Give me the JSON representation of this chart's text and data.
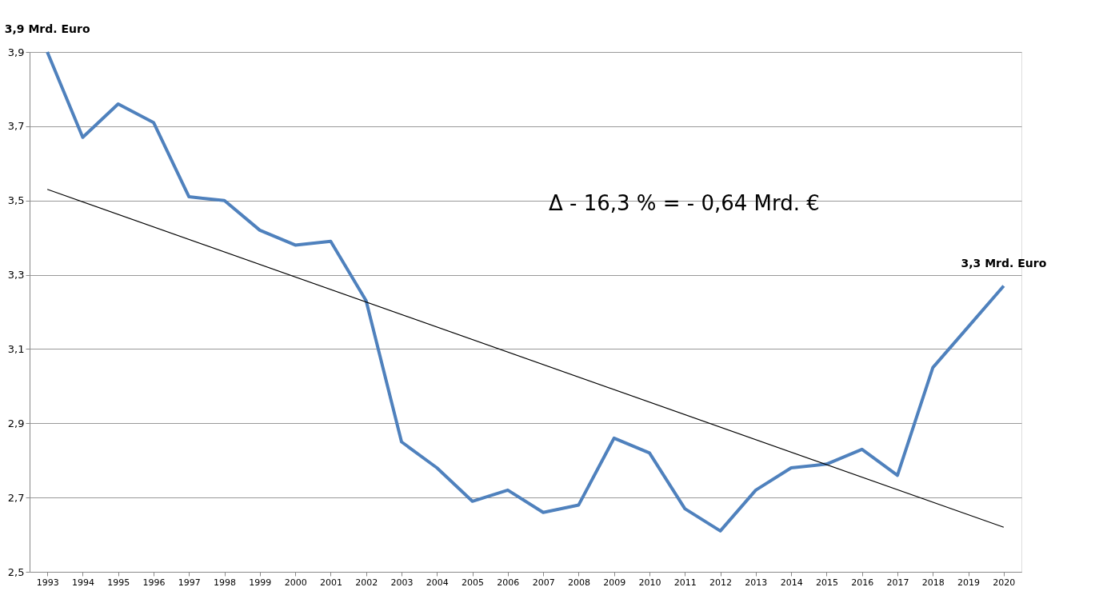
{
  "chart_data": {
    "type": "line",
    "categories": [
      "1993",
      "1994",
      "1995",
      "1996",
      "1997",
      "1998",
      "1999",
      "2000",
      "2001",
      "2002",
      "2003",
      "2004",
      "2005",
      "2006",
      "2007",
      "2008",
      "2009",
      "2010",
      "2011",
      "2012",
      "2013",
      "2014",
      "2015",
      "2016",
      "2017",
      "2018",
      "2019",
      "2020"
    ],
    "series": [
      {
        "color": "#4f81bd",
        "values": [
          3.9,
          3.67,
          3.76,
          3.71,
          3.51,
          3.5,
          3.42,
          3.38,
          3.39,
          3.23,
          2.85,
          2.78,
          2.69,
          2.72,
          2.66,
          2.68,
          2.86,
          2.82,
          2.67,
          2.61,
          2.72,
          2.78,
          2.79,
          2.83,
          2.76,
          3.05,
          3.16,
          3.27
        ]
      },
      {
        "type": "line",
        "color": "#000000",
        "values": [
          3.53,
          null,
          null,
          null,
          null,
          null,
          null,
          null,
          null,
          null,
          null,
          null,
          null,
          null,
          null,
          null,
          null,
          null,
          null,
          null,
          null,
          null,
          null,
          null,
          null,
          null,
          null,
          2.62
        ]
      }
    ],
    "ylim": [
      2.5,
      3.9
    ],
    "yticks": [
      {
        "value": 2.5,
        "label": "2,5"
      },
      {
        "value": 2.7,
        "label": "2,7"
      },
      {
        "value": 2.9,
        "label": "2,9"
      },
      {
        "value": 3.1,
        "label": "3,1"
      },
      {
        "value": 3.3,
        "label": "3,3"
      },
      {
        "value": 3.5,
        "label": "3,5"
      },
      {
        "value": 3.7,
        "label": "3,7"
      },
      {
        "value": 3.9,
        "label": "3,9"
      }
    ],
    "grid": "y",
    "annotations": [
      {
        "text": "3,9 Mrd. Euro",
        "x": "1993",
        "y": 3.9
      },
      {
        "text": "3,3 Mrd. Euro",
        "x": "2020",
        "y": 3.27
      },
      "Δ - 16,3 % = - 0,64 Mrd. €"
    ]
  }
}
